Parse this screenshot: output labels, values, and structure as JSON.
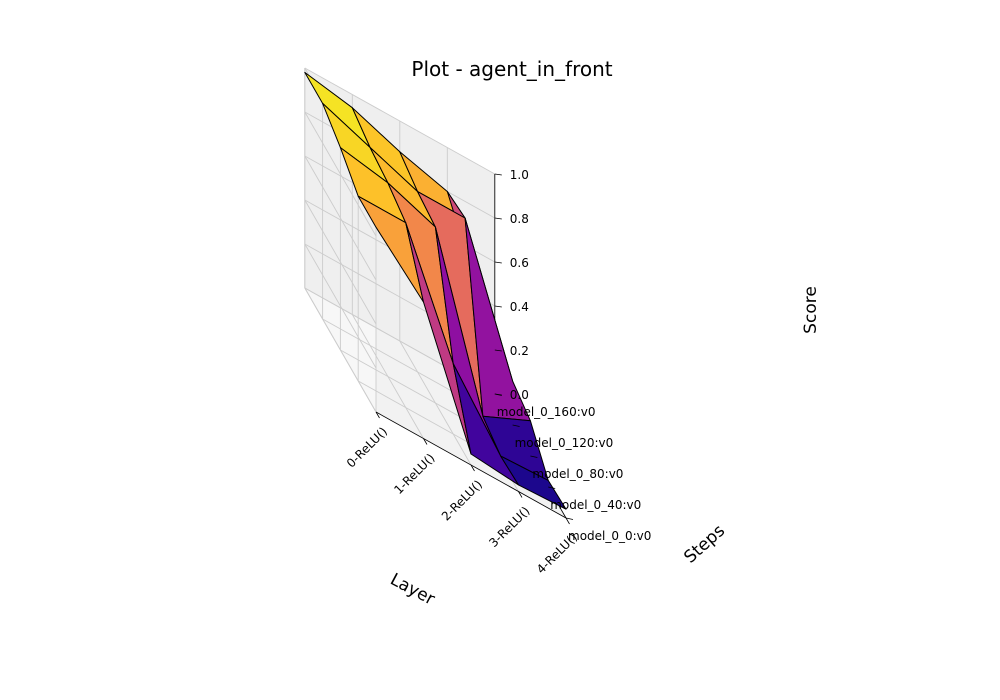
{
  "chart_data": {
    "type": "surface3d",
    "title": "Plot - agent_in_front",
    "xlabel": "Layer",
    "ylabel": "Steps",
    "zlabel": "Score",
    "x_categories": [
      "0-ReLU()",
      "1-ReLU()",
      "2-ReLU()",
      "3-ReLU()",
      "4-ReLU()"
    ],
    "y_categories": [
      "model_0_0:v0",
      "model_0_40:v0",
      "model_0_80:v0",
      "model_0_120:v0",
      "model_0_160:v0"
    ],
    "z_ticks": [
      "0.0",
      "0.2",
      "0.4",
      "0.6",
      "0.8",
      "1.0"
    ],
    "zlim": [
      0,
      1
    ],
    "colormap": "plasma",
    "grid": true,
    "z_values": [
      [
        0.84,
        0.84,
        0.92,
        0.98,
        0.98
      ],
      [
        0.62,
        0.84,
        0.88,
        0.9,
        0.94
      ],
      [
        0.05,
        0.32,
        0.8,
        0.82,
        0.86
      ],
      [
        0.03,
        0.02,
        0.06,
        0.82,
        0.8
      ],
      [
        0.04,
        0.03,
        0.16,
        0.2,
        0.22
      ]
    ]
  }
}
